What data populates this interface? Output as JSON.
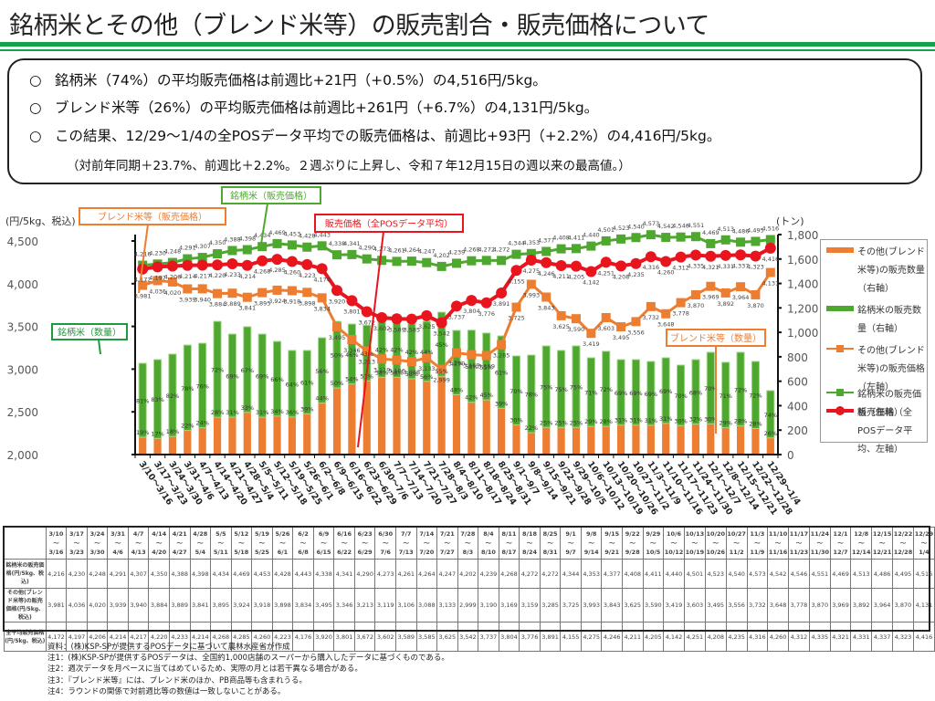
{
  "page": {
    "title": "銘柄米とその他（ブレンド米等）の販売割合・販売価格について"
  },
  "summary": {
    "bullet": "○",
    "lines": [
      "銘柄米（74%）の平均販売価格は前週比+21円（+0.5%）の4,516円/5kg。",
      "ブレンド米等（26%）の平均販売価格は前週比+261円（+6.7%）の4,131円/5kg。",
      "この結果、12/29～1/4の全POSデータ平均での販売価格は、前週比+93円（+2.2%）の4,416円/5kg。"
    ],
    "note": "（対前年同期＋23.7%、前週比＋2.2%。２週ぶりに上昇し、令和７年12月15日の週以来の最高値。）"
  },
  "colors": {
    "brand": "#4ea72e",
    "blend": "#ed7d31",
    "pos": "#e8141e",
    "title_rule": "#12a34a"
  },
  "chart_data": {
    "type": "bar",
    "title": "",
    "ylabel": "(円/5kg、税込)",
    "y2label": "(トン)",
    "ylim": [
      2000,
      4500
    ],
    "y2lim": [
      0,
      1800
    ],
    "yticks": [
      "2,000",
      "2,500",
      "3,000",
      "3,500",
      "4,000",
      "4,500"
    ],
    "y2ticks": [
      "0",
      "200",
      "400",
      "600",
      "800",
      "1,000",
      "1,200",
      "1,400",
      "1,600",
      "1,800"
    ],
    "grid": false,
    "legend_position": "right",
    "callouts": {
      "brand_price": "銘柄米（販売価格）",
      "blend_price": "ブレンド米等（販売価格）",
      "pos_price": "販売価格（全POSデータ平均）",
      "brand_qty": "銘柄米（数量）",
      "blend_qty": "ブレンド米等（数量）"
    },
    "categories": [
      "3/10～3/16",
      "3/17～3/23",
      "3/24～3/30",
      "3/31～4/6",
      "4/7～4/13",
      "4/14～4/20",
      "4/21～4/27",
      "4/28～5/4",
      "5/5～5/11",
      "5/12～5/18",
      "5/19～5/25",
      "5/26～6/1",
      "6/2～6/8",
      "6/9～6/15",
      "6/16～6/22",
      "6/23～6/29",
      "6/30～7/6",
      "7/7～7/13",
      "7/14～7/20",
      "7/21～7/27",
      "7/28～8/3",
      "8/4～8/10",
      "8/11～8/17",
      "8/18～8/24",
      "8/25～8/31",
      "9/1～9/7",
      "9/8～9/14",
      "9/15～9/21",
      "9/22～9/28",
      "9/29～10/5",
      "10/6～10/12",
      "10/13～10/19",
      "10/20～10/26",
      "10/27～11/2",
      "11/3～11/9",
      "11/10～11/16",
      "11/17～11/23",
      "11/24～11/30",
      "12/1～12/7",
      "12/8～12/14",
      "12/15～12/21",
      "12/22～12/28",
      "12/29～1/4"
    ],
    "series": [
      {
        "name": "その他(ブレンド米等)の販売数量（右軸）",
        "axis": "right",
        "kind": "bar-stack",
        "values": [
          142,
          132,
          148,
          197,
          219,
          305,
          306,
          345,
          306,
          315,
          307,
          332,
          421,
          545,
          577,
          603,
          632,
          632,
          620,
          599,
          641,
          490,
          428,
          447,
          379,
          242,
          179,
          222,
          222,
          222,
          230,
          231,
          241,
          241,
          240,
          255,
          237,
          249,
          251,
          219,
          234,
          213,
          136
        ]
      },
      {
        "name": "銘柄米の販売数量（右軸）",
        "axis": "right",
        "kind": "bar-stack",
        "values": [
          605,
          645,
          674,
          699,
          692,
          785,
          680,
          701,
          680,
          611,
          545,
          520,
          535,
          545,
          491,
          455,
          458,
          458,
          448,
          491,
          524,
          526,
          590,
          547,
          592,
          565,
          635,
          667,
          630,
          667,
          562,
          614,
          536,
          536,
          522,
          537,
          495,
          528,
          586,
          536,
          603,
          549,
          387
        ]
      },
      {
        "name": "その他(ブレンド米等)の販売価格（左軸）",
        "axis": "left",
        "kind": "line",
        "values": [
          3981,
          4036,
          4020,
          3939,
          3940,
          3884,
          3889,
          3841,
          3895,
          3924,
          3918,
          3898,
          3834,
          3495,
          3346,
          3213,
          3119,
          3106,
          3088,
          3133,
          2999,
          3190,
          3169,
          3159,
          3285,
          3725,
          3993,
          3843,
          3625,
          3590,
          3419,
          3603,
          3495,
          3556,
          3732,
          3648,
          3778,
          3870,
          3969,
          3892,
          3964,
          3870,
          4131
        ]
      },
      {
        "name": "銘柄米の販売価格（左軸）",
        "axis": "left",
        "kind": "line",
        "values": [
          4216,
          4230,
          4248,
          4291,
          4307,
          4350,
          4388,
          4398,
          4434,
          4469,
          4453,
          4428,
          4443,
          4338,
          4341,
          4290,
          4273,
          4261,
          4264,
          4247,
          4202,
          4239,
          4268,
          4272,
          4272,
          4344,
          4353,
          4377,
          4408,
          4411,
          4440,
          4501,
          4523,
          4540,
          4573,
          4542,
          4546,
          4551,
          4469,
          4513,
          4486,
          4495,
          4516
        ]
      },
      {
        "name": "販売価格（全POSデータ平均、左軸）",
        "axis": "left",
        "kind": "line",
        "values": [
          4172,
          4197,
          4206,
          4214,
          4217,
          4220,
          4233,
          4214,
          4268,
          4285,
          4260,
          4223,
          4176,
          3920,
          3801,
          3672,
          3602,
          3589,
          3585,
          3625,
          3542,
          3737,
          3804,
          3776,
          3891,
          4155,
          4275,
          4246,
          4211,
          4205,
          4142,
          4251,
          4208,
          4235,
          4316,
          4260,
          4312,
          4335,
          4321,
          4331,
          4337,
          4323,
          4416
        ]
      }
    ],
    "share_labels": {
      "brand_pct": [
        "81%",
        "83%",
        "82%",
        "78%",
        "76%",
        "72%",
        "69%",
        "67%",
        "69%",
        "66%",
        "64%",
        "61%",
        "56%",
        "50%",
        "46%",
        "43%",
        "42%",
        "42%",
        "42%",
        "44%",
        "45%",
        "52%",
        "58%",
        "55%",
        "61%",
        "70%",
        "78%",
        "75%",
        "75%",
        "75%",
        "71%",
        "72%",
        "69%",
        "69%",
        "69%",
        "69%",
        "70%",
        "68%",
        "70%",
        "71%",
        "72%",
        "72%",
        "74%"
      ],
      "blend_pct": [
        "19%",
        "17%",
        "18%",
        "22%",
        "24%",
        "28%",
        "31%",
        "33%",
        "31%",
        "34%",
        "36%",
        "39%",
        "44%",
        "50%",
        "54%",
        "57%",
        "58%",
        "58%",
        "58%",
        "56%",
        "55%",
        "48%",
        "42%",
        "45%",
        "39%",
        "30%",
        "22%",
        "25%",
        "25%",
        "25%",
        "29%",
        "28%",
        "31%",
        "31%",
        "31%",
        "31%",
        "30%",
        "32%",
        "30%",
        "29%",
        "28%",
        "28%",
        "26%"
      ]
    },
    "legend": [
      "その他(ブレンド米等)の販売数量（右軸）",
      "銘柄米の販売数量（右軸）",
      "その他(ブレンド米等)の販売価格（左軸）",
      "銘柄米の販売価格（左軸）",
      "販売価格（全POSデータ平均、左軸）"
    ]
  },
  "table": {
    "headers_top": [
      "3/10",
      "3/17",
      "3/24",
      "3/31",
      "4/7",
      "4/14",
      "4/21",
      "4/28",
      "5/5",
      "5/12",
      "5/19",
      "5/26",
      "6/2",
      "6/9",
      "6/16",
      "6/23",
      "6/30",
      "7/7",
      "7/14",
      "7/21",
      "7/28",
      "8/4",
      "8/11",
      "8/18",
      "8/25",
      "9/1",
      "9/8",
      "9/15",
      "9/22",
      "9/29",
      "10/6",
      "10/13",
      "10/20",
      "10/27",
      "11/3",
      "11/10",
      "11/17",
      "11/24",
      "12/1",
      "12/8",
      "12/15",
      "12/22",
      "12/29"
    ],
    "headers_bottom": [
      "3/16",
      "3/23",
      "3/30",
      "4/6",
      "4/13",
      "4/20",
      "4/27",
      "5/4",
      "5/11",
      "5/18",
      "5/25",
      "6/1",
      "6/8",
      "6/15",
      "6/22",
      "6/29",
      "7/6",
      "7/13",
      "7/20",
      "7/27",
      "8/3",
      "8/10",
      "8/17",
      "8/24",
      "8/31",
      "9/7",
      "9/14",
      "9/21",
      "9/28",
      "10/5",
      "10/12",
      "10/19",
      "10/26",
      "11/2",
      "11/9",
      "11/16",
      "11/23",
      "11/30",
      "12/7",
      "12/14",
      "12/21",
      "12/28",
      "1/4"
    ],
    "tilde": "～",
    "rows": [
      {
        "label": "銘柄米の販売価格(円/5kg、税込)",
        "values": [
          "4,216",
          "4,230",
          "4,248",
          "4,291",
          "4,307",
          "4,350",
          "4,388",
          "4,398",
          "4,434",
          "4,469",
          "4,453",
          "4,428",
          "4,443",
          "4,338",
          "4,341",
          "4,290",
          "4,273",
          "4,261",
          "4,264",
          "4,247",
          "4,202",
          "4,239",
          "4,268",
          "4,272",
          "4,272",
          "4,344",
          "4,353",
          "4,377",
          "4,408",
          "4,411",
          "4,440",
          "4,501",
          "4,523",
          "4,540",
          "4,573",
          "4,542",
          "4,546",
          "4,551",
          "4,469",
          "4,513",
          "4,486",
          "4,495",
          "4,516"
        ]
      },
      {
        "label": "その他(ブレンド米等)の販売価格(円/5kg、税込)",
        "values": [
          "3,981",
          "4,036",
          "4,020",
          "3,939",
          "3,940",
          "3,884",
          "3,889",
          "3,841",
          "3,895",
          "3,924",
          "3,918",
          "3,898",
          "3,834",
          "3,495",
          "3,346",
          "3,213",
          "3,119",
          "3,106",
          "3,088",
          "3,133",
          "2,999",
          "3,190",
          "3,169",
          "3,159",
          "3,285",
          "3,725",
          "3,993",
          "3,843",
          "3,625",
          "3,590",
          "3,419",
          "3,603",
          "3,495",
          "3,556",
          "3,732",
          "3,648",
          "3,778",
          "3,870",
          "3,969",
          "3,892",
          "3,964",
          "3,870",
          "4,131"
        ]
      },
      {
        "label": "全平均販売価格(円/5kg、税込)",
        "values": [
          "4,172",
          "4,197",
          "4,206",
          "4,214",
          "4,217",
          "4,220",
          "4,233",
          "4,214",
          "4,268",
          "4,285",
          "4,260",
          "4,223",
          "4,176",
          "3,920",
          "3,801",
          "3,672",
          "3,602",
          "3,589",
          "3,585",
          "3,625",
          "3,542",
          "3,737",
          "3,804",
          "3,776",
          "3,891",
          "4,155",
          "4,275",
          "4,246",
          "4,211",
          "4,205",
          "4,142",
          "4,251",
          "4,208",
          "4,235",
          "4,316",
          "4,260",
          "4,312",
          "4,335",
          "4,321",
          "4,331",
          "4,337",
          "4,323",
          "4,416"
        ]
      }
    ]
  },
  "notes": [
    "資料：(株)KSP-SPが提供するPOSデータに基づいて農林水産省が作成",
    "注1：(株)KSP-SPが提供するPOSデータは、全国約1,000店舗のスーパーから購入したデータに基づくものである。",
    "注2：週次データを月ベースに当てはめているため、実際の月とは若干異なる場合がある。",
    "注3：『ブレンド米等』には、ブレンド米のほか、PB商品等も含まれうる。",
    "注4：ラウンドの関係で対前週比等の数値は一致しないことがある。"
  ]
}
